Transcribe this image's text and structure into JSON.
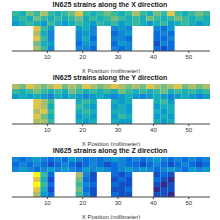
{
  "chart_data": [
    {
      "type": "heatmap",
      "title": "IN625 strains along the X direction",
      "x_label": "X Position (millimeter)",
      "xlim": [
        0,
        56
      ],
      "xticks": [
        10,
        20,
        30,
        40,
        50
      ],
      "ylim": [
        0,
        8
      ],
      "tick_labels": "x",
      "x_edges": [
        0,
        2,
        4,
        6,
        8,
        10,
        12,
        14,
        16,
        18,
        20,
        22,
        24,
        26,
        28,
        30,
        32,
        34,
        36,
        38,
        40,
        42,
        44,
        46,
        48,
        50,
        52,
        54,
        56
      ],
      "y_edges": [
        8,
        7,
        6,
        5,
        4,
        3,
        2,
        1,
        0
      ],
      "cells": [
        [
          0.6,
          0.5,
          0.7,
          0.6,
          0.8,
          0.6,
          0.5,
          0.6,
          0.7,
          0.9,
          0.6,
          0.5,
          0.6,
          0.7,
          0.6,
          0.5,
          0.6,
          0.8,
          0.6,
          0.5,
          0.7,
          0.6,
          0.9,
          0.6,
          0.5,
          0.6,
          0.7,
          0.6
        ],
        [
          0.5,
          0.6,
          0.5,
          0.7,
          0.6,
          0.5,
          0.6,
          0.5,
          0.6,
          0.7,
          0.5,
          0.6,
          0.5,
          0.6,
          0.7,
          0.6,
          0.5,
          0.6,
          0.5,
          0.7,
          0.6,
          0.5,
          0.6,
          0.7,
          0.6,
          0.5,
          0.6,
          0.5
        ],
        [
          0.4,
          0.5,
          0.6,
          0.5,
          0.4,
          0.6,
          0.5,
          0.4,
          0.5,
          0.6,
          0.5,
          0.4,
          0.6,
          0.5,
          0.6,
          0.4,
          0.5,
          0.6,
          0.5,
          0.4,
          0.5,
          0.6,
          0.4,
          0.5,
          0.6,
          0.5,
          0.4,
          0.5
        ],
        [
          null,
          null,
          null,
          0.9,
          0.6,
          0.4,
          null,
          null,
          null,
          0.4,
          0.5,
          0.3,
          null,
          null,
          0.3,
          0.4,
          0.3,
          null,
          null,
          null,
          0.3,
          0.2,
          0.4,
          null,
          null,
          null,
          null,
          null
        ],
        [
          null,
          null,
          null,
          0.8,
          0.5,
          0.3,
          null,
          null,
          null,
          0.3,
          0.4,
          0.3,
          null,
          null,
          0.2,
          0.3,
          0.4,
          null,
          null,
          null,
          0.2,
          0.3,
          0.2,
          null,
          null,
          null,
          null,
          null
        ],
        [
          null,
          null,
          null,
          0.9,
          0.6,
          0.3,
          null,
          null,
          null,
          0.3,
          0.5,
          0.2,
          null,
          null,
          0.3,
          0.3,
          0.2,
          null,
          null,
          null,
          0.2,
          0.2,
          0.3,
          null,
          null,
          null,
          null,
          null
        ],
        [
          null,
          null,
          null,
          0.7,
          0.5,
          0.4,
          null,
          null,
          null,
          0.2,
          0.4,
          0.3,
          null,
          null,
          0.2,
          0.4,
          0.3,
          null,
          null,
          null,
          0.1,
          0.3,
          0.2,
          null,
          null,
          null,
          null,
          null
        ],
        [
          null,
          null,
          null,
          0.8,
          0.6,
          0.3,
          null,
          null,
          null,
          0.3,
          0.3,
          0.2,
          null,
          null,
          0.3,
          0.2,
          0.3,
          null,
          null,
          null,
          0.2,
          0.1,
          0.2,
          null,
          null,
          null,
          null,
          null
        ]
      ]
    },
    {
      "type": "heatmap",
      "title": "IN625 strains along the Y direction",
      "x_label": "X Position (millimeter)",
      "xlim": [
        0,
        56
      ],
      "xticks": [
        10,
        20,
        30,
        40,
        50
      ],
      "ylim": [
        0,
        8
      ],
      "tick_labels": "x",
      "x_edges": [
        0,
        2,
        4,
        6,
        8,
        10,
        12,
        14,
        16,
        18,
        20,
        22,
        24,
        26,
        28,
        30,
        32,
        34,
        36,
        38,
        40,
        42,
        44,
        46,
        48,
        50,
        52,
        54,
        56
      ],
      "y_edges": [
        8,
        7,
        6,
        5,
        4,
        3,
        2,
        1,
        0
      ],
      "cells": [
        [
          0.8,
          0.7,
          0.9,
          0.8,
          0.7,
          0.8,
          0.9,
          0.7,
          0.8,
          0.7,
          0.9,
          0.8,
          0.7,
          0.8,
          0.9,
          0.8,
          0.7,
          0.8,
          0.7,
          0.9,
          0.8,
          0.7,
          0.8,
          0.9,
          0.7,
          0.8,
          0.7,
          0.8
        ],
        [
          0.6,
          0.5,
          0.6,
          0.7,
          0.6,
          0.5,
          0.6,
          0.5,
          0.7,
          0.6,
          0.5,
          0.6,
          0.5,
          0.6,
          0.5,
          0.7,
          0.6,
          0.5,
          0.6,
          0.5,
          0.6,
          0.7,
          0.5,
          0.6,
          0.5,
          0.6,
          0.5,
          0.6
        ],
        [
          0.4,
          0.5,
          0.4,
          0.5,
          0.4,
          0.3,
          0.5,
          0.4,
          0.5,
          0.4,
          0.3,
          0.4,
          0.5,
          0.4,
          0.3,
          0.4,
          0.5,
          0.4,
          0.3,
          0.4,
          0.5,
          0.4,
          0.3,
          0.4,
          0.5,
          0.4,
          0.3,
          0.4
        ],
        [
          null,
          null,
          null,
          0.9,
          0.8,
          0.6,
          null,
          null,
          null,
          0.5,
          0.6,
          0.5,
          null,
          null,
          0.5,
          0.4,
          0.5,
          null,
          null,
          null,
          0.5,
          0.6,
          0.4,
          null,
          null,
          null,
          null,
          null
        ],
        [
          null,
          null,
          null,
          0.9,
          0.8,
          0.5,
          null,
          null,
          null,
          0.6,
          0.5,
          0.4,
          null,
          null,
          0.4,
          0.5,
          0.4,
          null,
          null,
          null,
          0.4,
          0.5,
          0.5,
          null,
          null,
          null,
          null,
          null
        ],
        [
          null,
          null,
          null,
          0.8,
          0.9,
          0.6,
          null,
          null,
          null,
          0.5,
          0.6,
          0.5,
          null,
          null,
          0.5,
          0.5,
          0.4,
          null,
          null,
          null,
          0.5,
          0.4,
          0.5,
          null,
          null,
          null,
          null,
          null
        ],
        [
          null,
          null,
          null,
          0.9,
          0.7,
          0.5,
          null,
          null,
          null,
          0.4,
          0.5,
          0.4,
          null,
          null,
          0.4,
          0.6,
          0.5,
          null,
          null,
          null,
          0.4,
          0.5,
          0.4,
          null,
          null,
          null,
          null,
          null
        ],
        [
          null,
          null,
          null,
          0.8,
          0.8,
          0.6,
          null,
          null,
          null,
          0.5,
          0.4,
          0.5,
          null,
          null,
          0.5,
          0.4,
          0.4,
          null,
          null,
          null,
          0.5,
          0.4,
          0.5,
          null,
          null,
          null,
          null,
          null
        ]
      ]
    },
    {
      "type": "heatmap",
      "title": "IN625 strains along the Z direction",
      "x_label": "X Position (millimeter)",
      "xlim": [
        0,
        56
      ],
      "xticks": [
        10,
        20,
        30,
        40,
        50
      ],
      "ylim": [
        0,
        8
      ],
      "tick_labels": "x",
      "x_edges": [
        0,
        2,
        4,
        6,
        8,
        10,
        12,
        14,
        16,
        18,
        20,
        22,
        24,
        26,
        28,
        30,
        32,
        34,
        36,
        38,
        40,
        42,
        44,
        46,
        48,
        50,
        52,
        54,
        56
      ],
      "y_edges": [
        8,
        7,
        6,
        5,
        4,
        3,
        2,
        1,
        0
      ],
      "cells": [
        [
          0.3,
          0.2,
          0.3,
          0.4,
          0.3,
          0.2,
          0.3,
          0.2,
          0.4,
          0.3,
          0.2,
          0.3,
          0.2,
          0.3,
          0.4,
          0.3,
          0.2,
          0.3,
          0.2,
          0.3,
          0.4,
          0.3,
          0.2,
          0.3,
          0.2,
          0.3,
          0.2,
          0.3
        ],
        [
          0.2,
          0.3,
          0.2,
          0.3,
          0.2,
          0.1,
          0.2,
          0.3,
          0.2,
          0.1,
          0.2,
          0.3,
          0.2,
          0.1,
          0.2,
          0.3,
          0.2,
          0.2,
          0.1,
          0.2,
          0.3,
          0.2,
          0.1,
          0.2,
          0.3,
          0.2,
          0.1,
          0.2
        ],
        [
          0.3,
          0.4,
          0.3,
          0.2,
          0.3,
          0.4,
          0.3,
          0.4,
          0.3,
          0.2,
          0.4,
          0.3,
          0.4,
          0.3,
          0.2,
          0.3,
          0.4,
          0.3,
          0.4,
          0.3,
          0.2,
          0.3,
          0.4,
          0.3,
          0.2,
          0.4,
          0.3,
          0.4
        ],
        [
          null,
          null,
          null,
          1.0,
          0.6,
          0.2,
          null,
          null,
          null,
          0.8,
          0.3,
          0.1,
          null,
          null,
          0.2,
          0.1,
          0.2,
          null,
          null,
          null,
          0.1,
          0.2,
          0.1,
          null,
          null,
          null,
          null,
          null
        ],
        [
          null,
          null,
          null,
          0.9,
          0.5,
          0.1,
          null,
          null,
          null,
          0.7,
          0.2,
          0.1,
          null,
          null,
          0.1,
          0.2,
          0.1,
          null,
          null,
          null,
          0.2,
          0.1,
          0.0,
          null,
          null,
          null,
          null,
          null
        ],
        [
          null,
          null,
          null,
          1.0,
          0.6,
          0.2,
          null,
          null,
          null,
          0.6,
          0.3,
          0.2,
          null,
          null,
          0.2,
          0.1,
          0.1,
          null,
          null,
          null,
          0.1,
          0.0,
          0.1,
          null,
          null,
          null,
          null,
          null
        ],
        [
          null,
          null,
          null,
          0.9,
          0.5,
          0.1,
          null,
          null,
          null,
          0.7,
          0.2,
          0.1,
          null,
          null,
          0.1,
          0.1,
          0.2,
          null,
          null,
          null,
          0.0,
          0.1,
          0.1,
          null,
          null,
          null,
          null,
          null
        ],
        [
          null,
          null,
          null,
          0.8,
          0.4,
          0.2,
          null,
          null,
          null,
          0.6,
          0.3,
          0.1,
          null,
          null,
          0.2,
          0.1,
          0.1,
          null,
          null,
          null,
          0.1,
          0.1,
          0.0,
          null,
          null,
          null,
          null,
          null
        ]
      ]
    }
  ]
}
